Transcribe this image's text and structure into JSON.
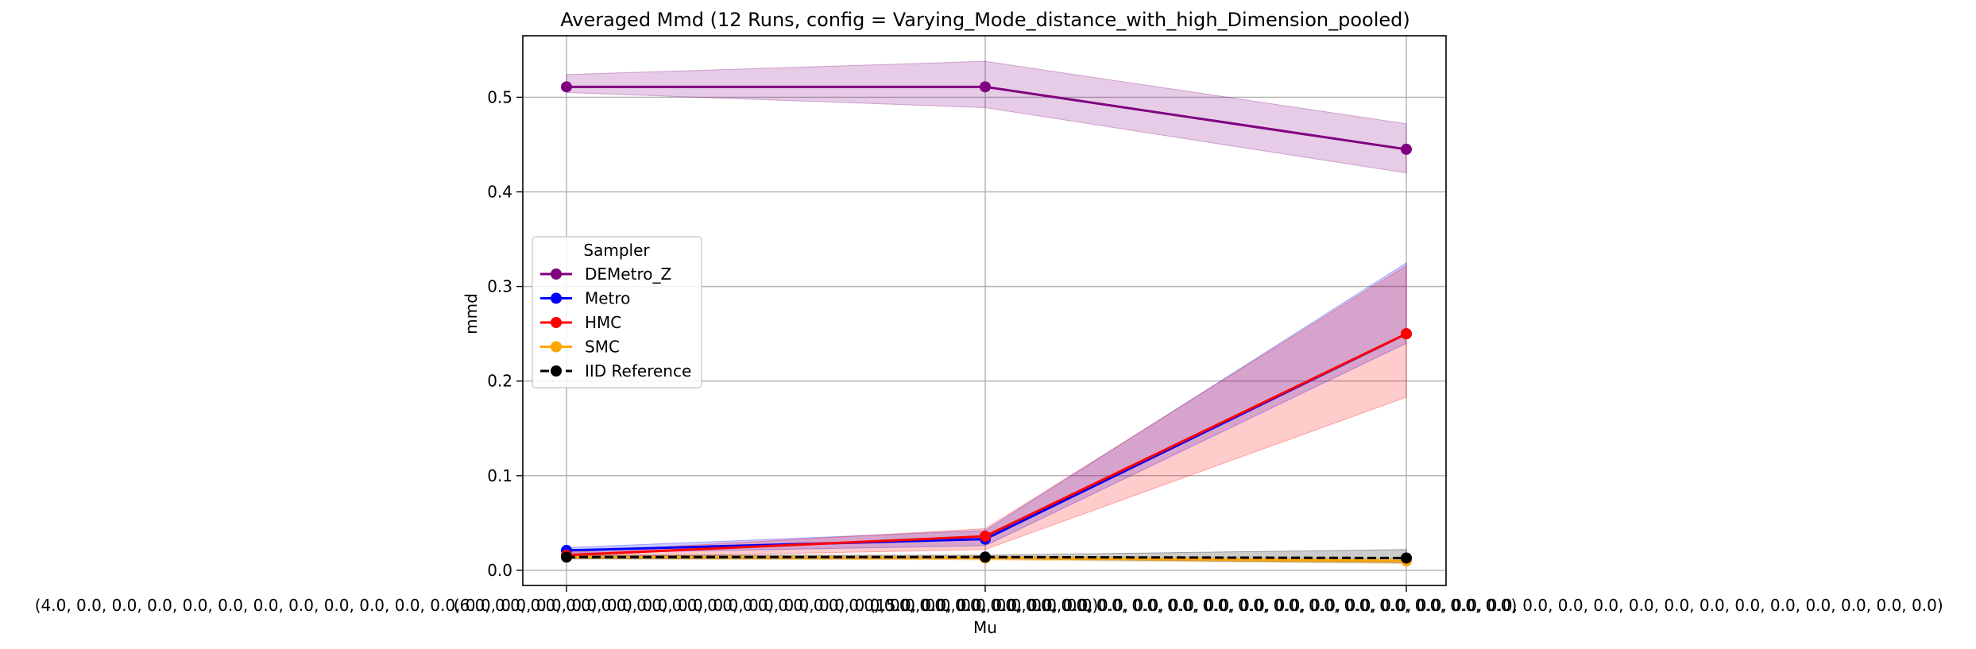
{
  "chart_data": {
    "type": "line",
    "title": "Averaged Mmd (12 Runs, config = Varying_Mode_distance_with_high_Dimension_pooled)",
    "xlabel": "Mu",
    "ylabel": "mmd",
    "categories": [
      "(4.0, 0.0, 0.0, 0.0, 0.0, 0.0, 0.0, 0.0, 0.0, 0.0, 0.0, 0.0, 0.0, 0.0, 0.0, 0.0, 0.0, 0.0, 0.0, 0.0, 0.0, 0.0, 0.0, 0.0, 0.0, 0.0, 0.0, 0.0, 0.0, 0.0)",
      "(6.0, 0.0, 0.0, 0.0, 0.0, 0.0, 0.0, 0.0, 0.0, 0.0, 0.0, 0.0, 0.0, 0.0, 0.0, 0.0, 0.0, 0.0, 0.0, 0.0, 0.0, 0.0, 0.0, 0.0, 0.0, 0.0, 0.0, 0.0, 0.0, 0.0)",
      "(15.0, 0.0, 0.0, 0.0, 0.0, 0.0, 0.0, 0.0, 0.0, 0.0, 0.0, 0.0, 0.0, 0.0, 0.0, 0.0, 0.0, 0.0, 0.0, 0.0, 0.0, 0.0, 0.0, 0.0, 0.0, 0.0, 0.0, 0.0, 0.0, 0.0)"
    ],
    "yticks": [
      "0.0",
      "0.1",
      "0.2",
      "0.3",
      "0.4",
      "0.5"
    ],
    "ylim": [
      -0.016,
      0.565
    ],
    "grid": true,
    "legend": {
      "title": "Sampler",
      "placement": "center-left"
    },
    "series": [
      {
        "name": "DEMetro_Z",
        "color": "#800080",
        "dashed": false,
        "values": [
          0.511,
          0.511,
          0.445
        ],
        "lower": [
          0.505,
          0.489,
          0.42
        ],
        "upper": [
          0.524,
          0.538,
          0.472
        ]
      },
      {
        "name": "Metro",
        "color": "#0000ff",
        "dashed": false,
        "values": [
          0.021,
          0.033,
          0.25
        ],
        "lower": [
          0.018,
          0.026,
          0.24
        ],
        "upper": [
          0.024,
          0.042,
          0.325
        ]
      },
      {
        "name": "HMC",
        "color": "#ff0000",
        "dashed": false,
        "values": [
          0.016,
          0.036,
          0.25
        ],
        "lower": [
          0.013,
          0.022,
          0.183
        ],
        "upper": [
          0.019,
          0.044,
          0.322
        ]
      },
      {
        "name": "SMC",
        "color": "#ffa500",
        "dashed": false,
        "values": [
          0.014,
          0.013,
          0.01
        ],
        "lower": [
          0.012,
          0.011,
          0.007
        ],
        "upper": [
          0.016,
          0.015,
          0.013
        ]
      },
      {
        "name": "IID Reference",
        "color": "#000000",
        "dashed": true,
        "values": [
          0.014,
          0.014,
          0.013
        ],
        "lower": [
          0.012,
          0.012,
          0.008
        ],
        "upper": [
          0.016,
          0.016,
          0.022
        ]
      }
    ]
  }
}
